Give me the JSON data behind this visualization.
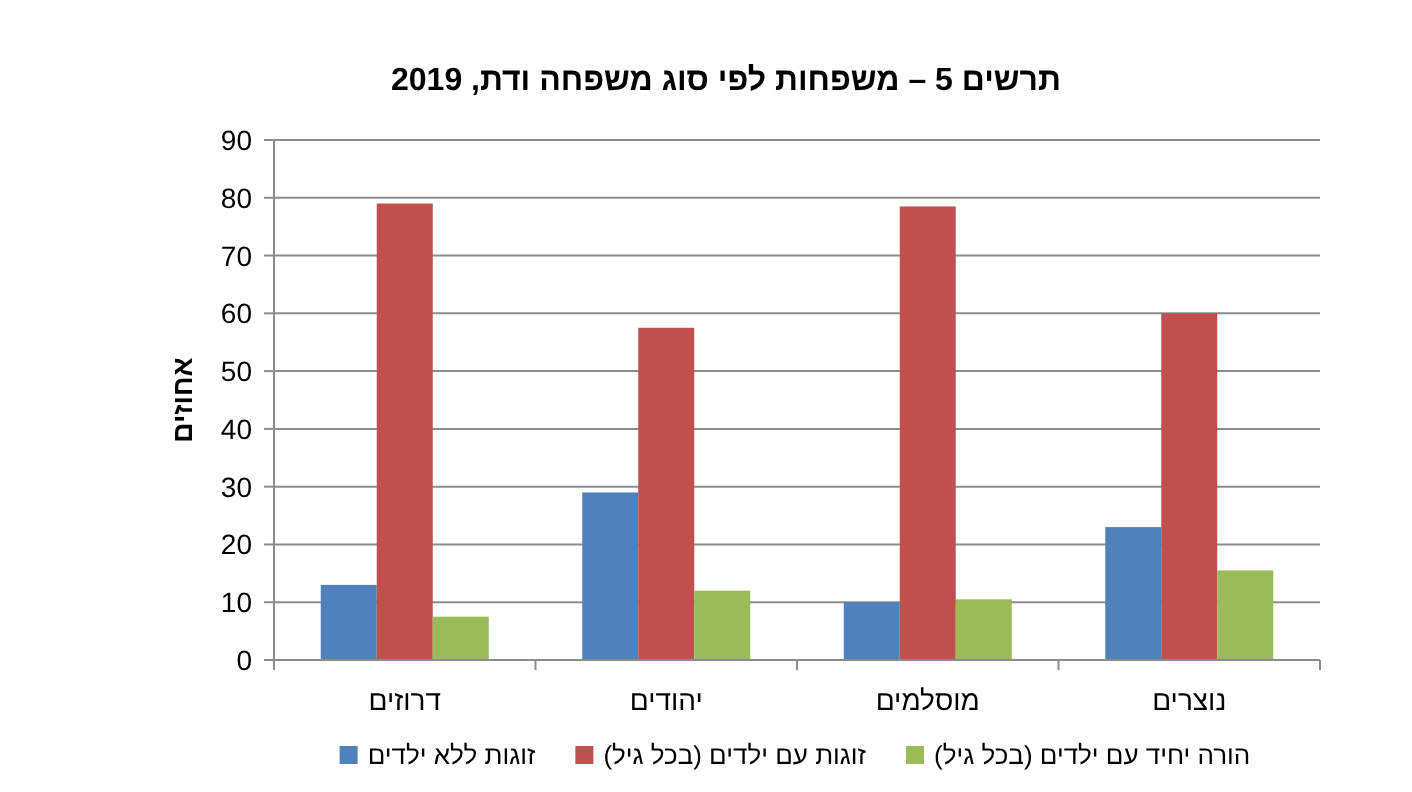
{
  "chart_data": {
    "type": "bar",
    "title": "תרשים 5 – משפחות לפי סוג משפחה ודת, 2019",
    "ylabel": "אחוזים",
    "categories": [
      "דרוזים",
      "יהודים",
      "מוסלמים",
      "נוצרים"
    ],
    "series": [
      {
        "name": "זוגות ללא ילדים",
        "color": "#4f81bd",
        "values": [
          13,
          29,
          10,
          23
        ]
      },
      {
        "name": "זוגות עם ילדים (בכל גיל)",
        "color": "#c0504d",
        "values": [
          79,
          57.5,
          78.5,
          60
        ]
      },
      {
        "name": "הורה יחיד עם ילדים (בכל גיל)",
        "color": "#9bbb59",
        "values": [
          7.5,
          12,
          10.5,
          15.5
        ]
      }
    ],
    "ylim": [
      0,
      90
    ],
    "yticks": [
      0,
      10,
      20,
      30,
      40,
      50,
      60,
      70,
      80,
      90
    ],
    "grid": "y",
    "legend": "bottom"
  }
}
